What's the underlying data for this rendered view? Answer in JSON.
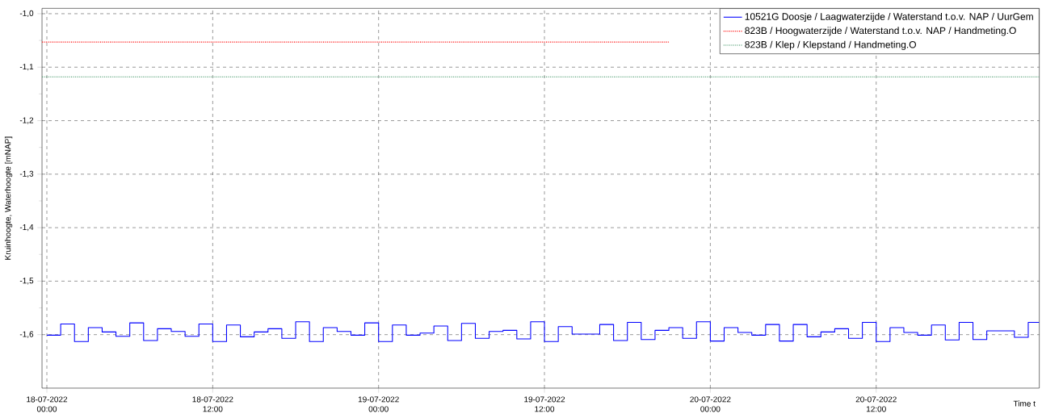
{
  "chart_data": {
    "type": "step",
    "ylabel": "Kruinhoogte, Waterhoogte [mNAP]",
    "xlabel": "Time t",
    "xlim": [
      "2022-07-17T23:39",
      "2022-07-20T23:48"
    ],
    "xticks": [
      {
        "value": "2022-07-18T00:00",
        "label": "18-07-2022 00:00"
      },
      {
        "value": "2022-07-18T12:00",
        "label": "18-07-2022 12:00"
      },
      {
        "value": "2022-07-19T00:00",
        "label": "19-07-2022 00:00"
      },
      {
        "value": "2022-07-19T12:00",
        "label": "19-07-2022 12:00"
      },
      {
        "value": "2022-07-20T00:00",
        "label": "20-07-2022 00:00"
      },
      {
        "value": "2022-07-20T12:00",
        "label": "20-07-2022 12:00"
      }
    ],
    "ylim": [
      -1.7,
      -0.99
    ],
    "yticks": [
      {
        "value": -1.6,
        "label": "-1,6"
      },
      {
        "value": -1.5,
        "label": "-1,5"
      },
      {
        "value": -1.4,
        "label": "-1,4"
      },
      {
        "value": -1.3,
        "label": "-1,3"
      },
      {
        "value": -1.2,
        "label": "-1,2"
      },
      {
        "value": -1.1,
        "label": "-1,1"
      },
      {
        "value": -1.0,
        "label": "-1,0"
      }
    ],
    "grid": true,
    "legend": "top right",
    "series": [
      {
        "name": "10521G Doosje / Laagwaterzijde / Waterstand t.o.v. NAP / UurGem",
        "color": "#0000ff",
        "line_style": "solid",
        "x": [
          "2022-07-18T00:00",
          "2022-07-18T01:00",
          "2022-07-18T02:00",
          "2022-07-18T03:00",
          "2022-07-18T04:00",
          "2022-07-18T05:00",
          "2022-07-18T06:00",
          "2022-07-18T07:00",
          "2022-07-18T08:00",
          "2022-07-18T09:00",
          "2022-07-18T10:00",
          "2022-07-18T11:00",
          "2022-07-18T12:00",
          "2022-07-18T13:00",
          "2022-07-18T14:00",
          "2022-07-18T15:00",
          "2022-07-18T16:00",
          "2022-07-18T17:00",
          "2022-07-18T18:00",
          "2022-07-18T19:00",
          "2022-07-18T20:00",
          "2022-07-18T21:00",
          "2022-07-18T22:00",
          "2022-07-18T23:00",
          "2022-07-19T00:00",
          "2022-07-19T01:00",
          "2022-07-19T02:00",
          "2022-07-19T03:00",
          "2022-07-19T04:00",
          "2022-07-19T05:00",
          "2022-07-19T06:00",
          "2022-07-19T07:00",
          "2022-07-19T08:00",
          "2022-07-19T09:00",
          "2022-07-19T10:00",
          "2022-07-19T11:00",
          "2022-07-19T12:00",
          "2022-07-19T13:00",
          "2022-07-19T14:00",
          "2022-07-19T15:00",
          "2022-07-19T16:00",
          "2022-07-19T17:00",
          "2022-07-19T18:00",
          "2022-07-19T19:00",
          "2022-07-19T20:00",
          "2022-07-19T21:00",
          "2022-07-19T22:00",
          "2022-07-19T23:00",
          "2022-07-20T00:00",
          "2022-07-20T01:00",
          "2022-07-20T02:00",
          "2022-07-20T03:00",
          "2022-07-20T04:00",
          "2022-07-20T05:00",
          "2022-07-20T06:00",
          "2022-07-20T07:00",
          "2022-07-20T08:00",
          "2022-07-20T09:00",
          "2022-07-20T10:00",
          "2022-07-20T11:00",
          "2022-07-20T12:00",
          "2022-07-20T13:00",
          "2022-07-20T14:00",
          "2022-07-20T15:00",
          "2022-07-20T16:00",
          "2022-07-20T17:00",
          "2022-07-20T18:00",
          "2022-07-20T19:00",
          "2022-07-20T20:00",
          "2022-07-20T21:00",
          "2022-07-20T22:00",
          "2022-07-20T23:00",
          "2022-07-20T23:48"
        ],
        "values": [
          -1.601,
          -1.58,
          -1.613,
          -1.587,
          -1.595,
          -1.603,
          -1.578,
          -1.611,
          -1.589,
          -1.594,
          -1.603,
          -1.58,
          -1.613,
          -1.582,
          -1.604,
          -1.595,
          -1.589,
          -1.607,
          -1.576,
          -1.613,
          -1.587,
          -1.594,
          -1.601,
          -1.578,
          -1.613,
          -1.582,
          -1.601,
          -1.597,
          -1.584,
          -1.611,
          -1.579,
          -1.607,
          -1.594,
          -1.592,
          -1.608,
          -1.576,
          -1.613,
          -1.585,
          -1.599,
          -1.599,
          -1.581,
          -1.611,
          -1.577,
          -1.609,
          -1.592,
          -1.587,
          -1.607,
          -1.576,
          -1.612,
          -1.587,
          -1.596,
          -1.601,
          -1.581,
          -1.612,
          -1.581,
          -1.604,
          -1.595,
          -1.589,
          -1.607,
          -1.577,
          -1.613,
          -1.587,
          -1.596,
          -1.601,
          -1.582,
          -1.61,
          -1.577,
          -1.609,
          -1.593,
          -1.593,
          -1.605,
          -1.577,
          -1.577
        ]
      },
      {
        "name": "823B / Hoogwaterzijde / Waterstand t.o.v. NAP / Handmeting.O",
        "color": "#ff0000",
        "type": "line",
        "line_style": "dotted",
        "x": [
          "2022-07-17T23:39",
          "2022-07-19T21:00"
        ],
        "values": [
          -1.053,
          -1.053
        ]
      },
      {
        "name": "823B / Klep / Klepstand / Handmeting.O",
        "color": "#2e8b57",
        "type": "line",
        "line_style": "dotted",
        "x": [
          "2022-07-17T23:39",
          "2022-07-20T23:48"
        ],
        "values": [
          -1.118,
          -1.118
        ]
      }
    ]
  }
}
